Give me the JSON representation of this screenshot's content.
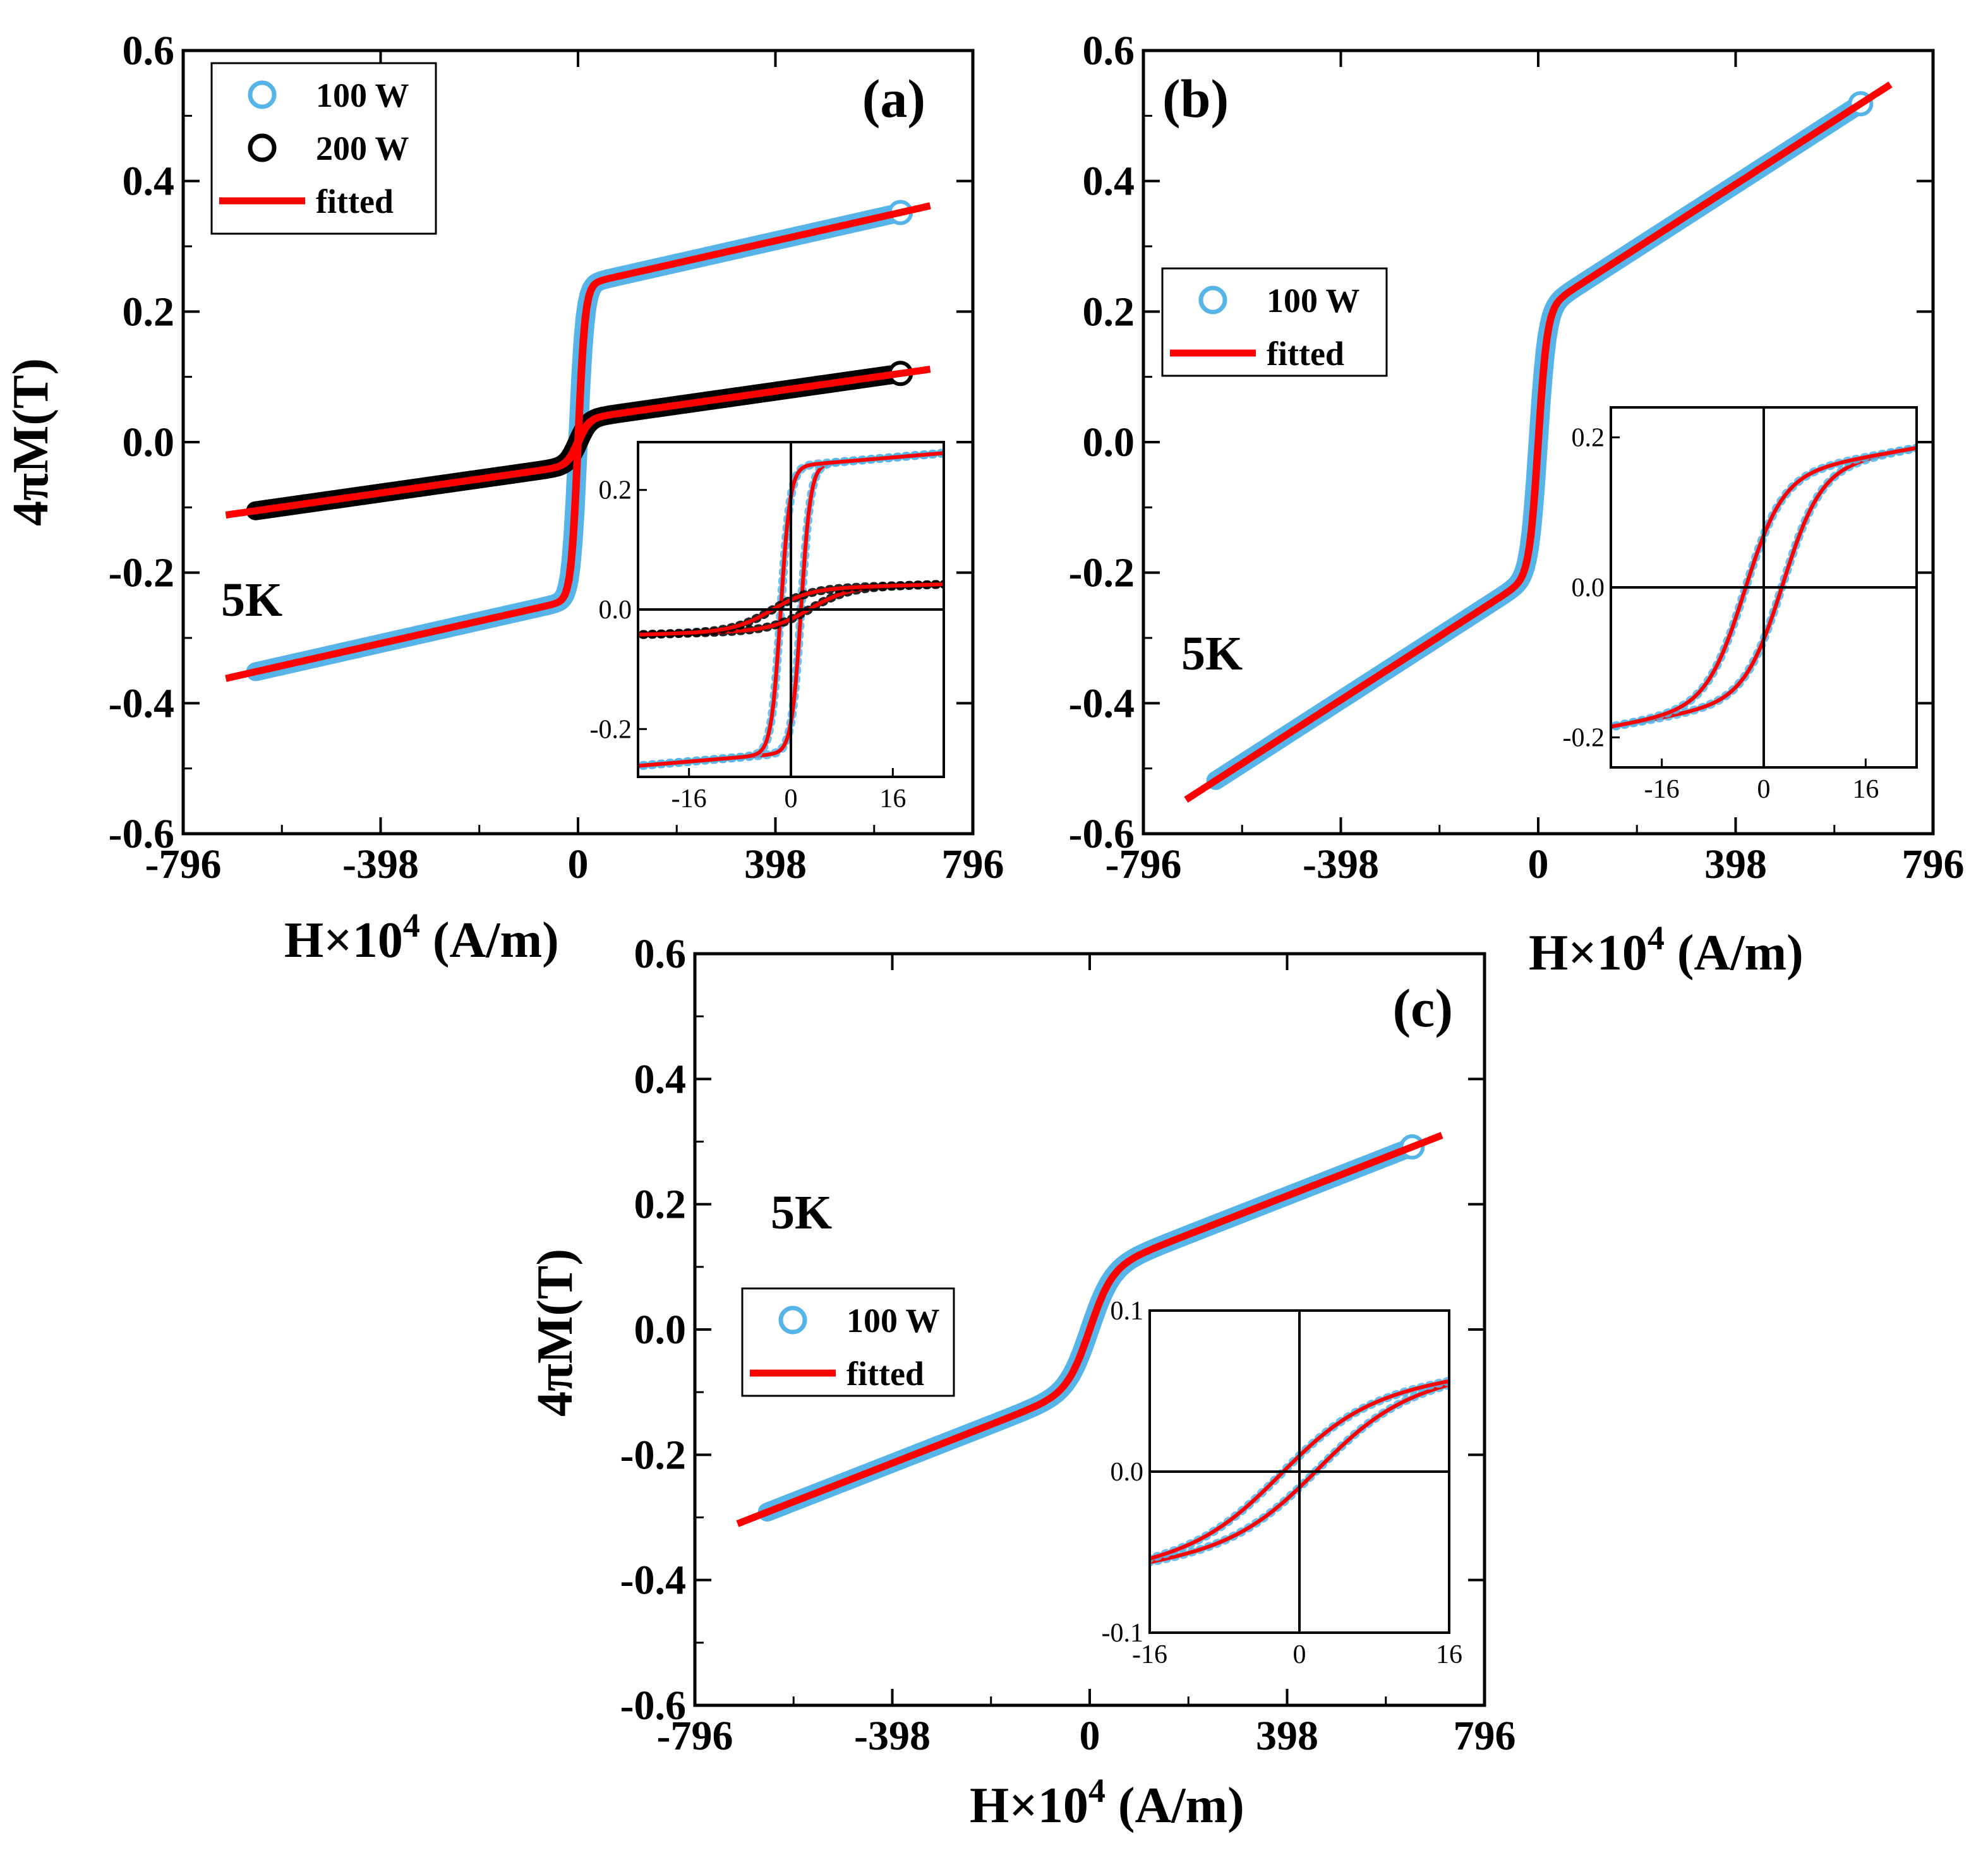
{
  "colors": {
    "sample_100W": "#56B4E9",
    "sample_200W": "#000000",
    "fit": "#FF0000",
    "axes": "#000000"
  },
  "chart_data": [
    {
      "panel": "(a)",
      "type": "line",
      "xlabel": "H×10",
      "xlabel_sup": "4",
      "xlabel_unit": " (A/m)",
      "ylabel": "4πM(T)",
      "xlim": [
        -796,
        796
      ],
      "ylim": [
        -0.6,
        0.6
      ],
      "xticks": [
        "-796",
        "-398",
        "0",
        "398",
        "796"
      ],
      "yticks": [
        "0.6",
        "0.4",
        "0.2",
        "0.0",
        "-0.2",
        "-0.4",
        "-0.6"
      ],
      "temperature_label": "5K",
      "legend": {
        "position": "top-left",
        "entries": [
          "100 W",
          "200 W",
          "fitted"
        ]
      },
      "series": [
        {
          "name": "100 W",
          "marker": "open-circle",
          "color": "#56B4E9",
          "x_range": [
            -650,
            650
          ],
          "saturation": 0.24,
          "high_field_slope": 0.000172,
          "width": 14,
          "shift": 0.65
        },
        {
          "name": "200 W",
          "marker": "open-circle",
          "color": "#000000",
          "x_range": [
            -650,
            650
          ],
          "saturation": 0.035,
          "high_field_slope": 0.000108,
          "width": 22,
          "shift": 1.5
        },
        {
          "name": "fitted",
          "line": "solid",
          "color": "#FF0000",
          "x_range": [
            -710,
            710
          ],
          "fits": [
            "100 W",
            "200 W"
          ]
        }
      ],
      "inset": {
        "xlim": [
          -24,
          24
        ],
        "ylim": [
          -0.28,
          0.28
        ],
        "xticks": [
          "-16",
          "0",
          "16"
        ],
        "yticks": [
          "0.2",
          "0.0",
          "-0.2"
        ],
        "loops": [
          {
            "series": "100 W",
            "saturation": 0.24,
            "slope": 0.0009,
            "width": 1.5,
            "coercive_shift": 1.6
          },
          {
            "series": "200 W",
            "saturation": 0.035,
            "slope": 0.0003,
            "width": 6.0,
            "coercive_shift": 3.0
          }
        ]
      }
    },
    {
      "panel": "(b)",
      "type": "line",
      "xlabel": "H×10",
      "xlabel_sup": "4",
      "xlabel_unit": " (A/m)",
      "xlim": [
        -796,
        796
      ],
      "ylim": [
        -0.6,
        0.6
      ],
      "xticks": [
        "-796",
        "-398",
        "0",
        "398",
        "796"
      ],
      "yticks": [
        "0.6",
        "0.4",
        "0.2",
        "0.0",
        "-0.2",
        "-0.4",
        "-0.6"
      ],
      "temperature_label": "5K",
      "legend": {
        "position": "upper-left",
        "entries": [
          "100 W",
          "fitted"
        ]
      },
      "series": [
        {
          "name": "100 W",
          "marker": "open-circle",
          "color": "#56B4E9",
          "x_range": [
            -650,
            650
          ],
          "saturation": 0.2,
          "high_field_slope": 0.00049,
          "width": 18,
          "shift": 0.5
        },
        {
          "name": "fitted",
          "line": "solid",
          "color": "#FF0000",
          "x_range": [
            -710,
            710
          ],
          "fits": [
            "100 W"
          ]
        }
      ],
      "inset": {
        "xlim": [
          -24,
          24
        ],
        "ylim": [
          -0.24,
          0.24
        ],
        "xticks": [
          "-16",
          "0",
          "16"
        ],
        "yticks": [
          "0.2",
          "0.0",
          "-0.2"
        ],
        "loops": [
          {
            "series": "100 W",
            "saturation": 0.15,
            "slope": 0.0015,
            "width": 6.0,
            "coercive_shift": 3.0
          }
        ]
      }
    },
    {
      "panel": "(c)",
      "type": "line",
      "xlabel": "H×10",
      "xlabel_sup": "4",
      "xlabel_unit": " (A/m)",
      "ylabel": "4πM(T)",
      "xlim": [
        -796,
        796
      ],
      "ylim": [
        -0.6,
        0.6
      ],
      "xticks": [
        "-796",
        "-398",
        "0",
        "398",
        "796"
      ],
      "yticks": [
        "0.6",
        "0.4",
        "0.2",
        "0.0",
        "-0.2",
        "-0.4",
        "-0.6"
      ],
      "temperature_label": "5K",
      "legend": {
        "position": "left",
        "entries": [
          "100 W",
          "fitted"
        ]
      },
      "series": [
        {
          "name": "100 W",
          "marker": "open-circle",
          "color": "#56B4E9",
          "x_range": [
            -650,
            650
          ],
          "saturation": 0.09,
          "high_field_slope": 0.00031,
          "width": 45,
          "shift": 0.5
        },
        {
          "name": "fitted",
          "line": "solid",
          "color": "#FF0000",
          "x_range": [
            -710,
            710
          ],
          "fits": [
            "100 W"
          ]
        }
      ],
      "inset": {
        "xlim": [
          -16,
          16
        ],
        "ylim": [
          -0.1,
          0.1
        ],
        "xticks": [
          "-16",
          "0",
          "16"
        ],
        "yticks": [
          "0.1",
          "0.0",
          "-0.1"
        ],
        "loops": [
          {
            "series": "100 W",
            "saturation": 0.045,
            "slope": 0.0008,
            "width": 9.0,
            "coercive_shift": 2.0
          }
        ]
      }
    }
  ]
}
